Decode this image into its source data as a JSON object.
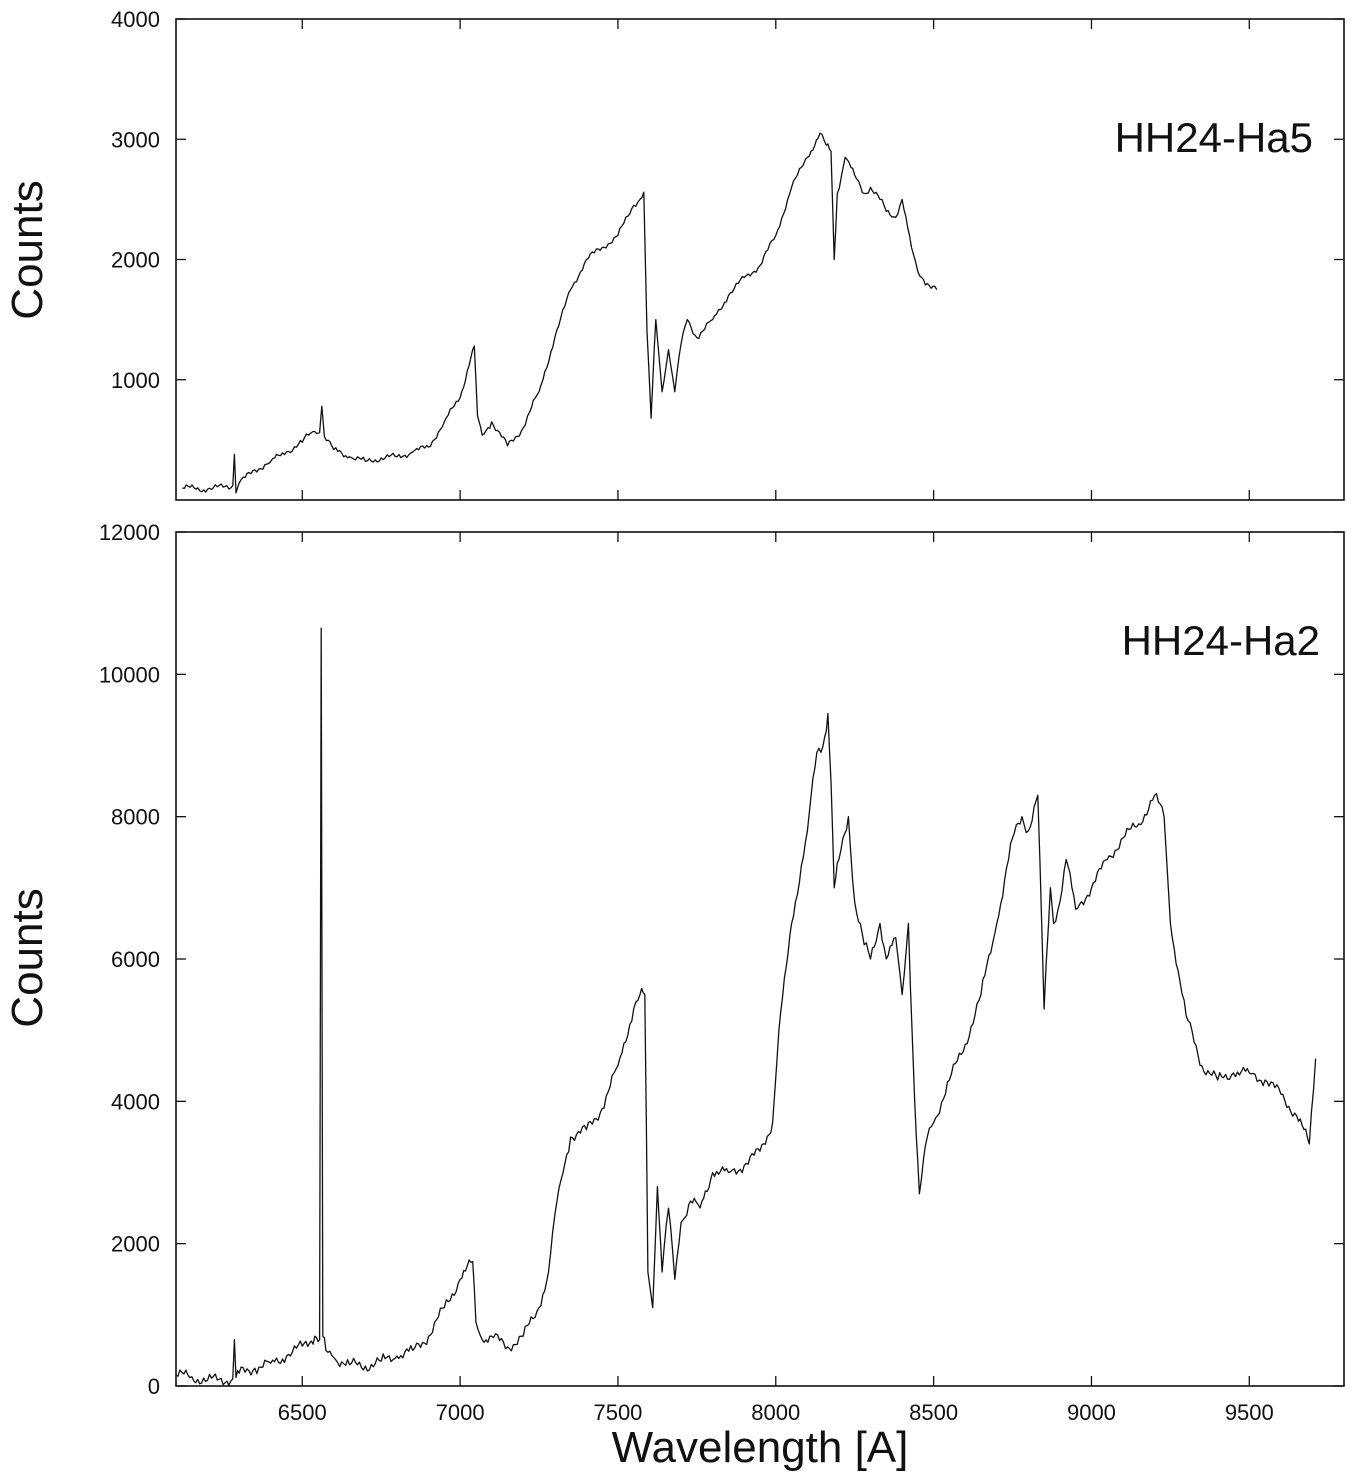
{
  "chart_data": [
    {
      "type": "line",
      "panel": "top",
      "annotation": "HH24-Ha5",
      "ylabel": "Counts",
      "xlabel": "",
      "xlim": [
        6100,
        9800
      ],
      "ylim": [
        0,
        4000
      ],
      "xticks": [
        6500,
        7000,
        7500,
        8000,
        8500,
        9000,
        9500
      ],
      "yticks": [
        1000,
        2000,
        3000,
        4000
      ],
      "ytick_labels": [
        "1000",
        "2000",
        "3000",
        "4000"
      ],
      "xtick_labels_visible": false,
      "series": [
        {
          "x": [
            6120,
            6200,
            6280,
            6285,
            6290,
            6300,
            6350,
            6400,
            6450,
            6500,
            6520,
            6540,
            6555,
            6562,
            6570,
            6600,
            6650,
            6700,
            6750,
            6800,
            6850,
            6900,
            6950,
            7000,
            7040,
            7045,
            7055,
            7070,
            7100,
            7150,
            7200,
            7220,
            7250,
            7300,
            7350,
            7400,
            7450,
            7500,
            7550,
            7570,
            7582,
            7592,
            7605,
            7620,
            7640,
            7660,
            7680,
            7700,
            7720,
            7750,
            7800,
            7850,
            7900,
            7950,
            8000,
            8050,
            8100,
            8140,
            8160,
            8175,
            8185,
            8195,
            8220,
            8250,
            8280,
            8300,
            8330,
            8350,
            8380,
            8400,
            8430,
            8450,
            8480,
            8510
          ],
          "y": [
            100,
            90,
            120,
            380,
            60,
            140,
            250,
            320,
            400,
            480,
            540,
            570,
            560,
            780,
            530,
            420,
            360,
            320,
            350,
            360,
            400,
            440,
            650,
            850,
            1250,
            1280,
            700,
            540,
            650,
            450,
            600,
            730,
            900,
            1350,
            1750,
            2000,
            2100,
            2200,
            2450,
            2500,
            2560,
            1400,
            680,
            1500,
            900,
            1250,
            900,
            1300,
            1500,
            1350,
            1500,
            1700,
            1850,
            1950,
            2200,
            2600,
            2850,
            3050,
            2950,
            2900,
            2000,
            2550,
            2850,
            2700,
            2550,
            2600,
            2500,
            2400,
            2350,
            2500,
            2100,
            1900,
            1800,
            1750
          ]
        }
      ]
    },
    {
      "type": "line",
      "panel": "bottom",
      "annotation": "HH24-Ha2",
      "ylabel": "Counts",
      "xlabel": "Wavelength [A]",
      "xlim": [
        6100,
        9800
      ],
      "ylim": [
        0,
        12000
      ],
      "xticks": [
        6500,
        7000,
        7500,
        8000,
        8500,
        9000,
        9500
      ],
      "xtick_labels": [
        "6500",
        "7000",
        "7500",
        "8000",
        "8500",
        "9000",
        "9500"
      ],
      "yticks": [
        0,
        2000,
        4000,
        6000,
        8000,
        10000,
        12000
      ],
      "ytick_labels": [
        "0",
        "2000",
        "4000",
        "6000",
        "8000",
        "10000",
        "12000"
      ],
      "series": [
        {
          "x": [
            6100,
            6150,
            6200,
            6280,
            6285,
            6290,
            6300,
            6350,
            6400,
            6450,
            6500,
            6540,
            6555,
            6560,
            6565,
            6575,
            6600,
            6650,
            6700,
            6750,
            6800,
            6850,
            6900,
            6950,
            7000,
            7040,
            7050,
            7070,
            7100,
            7150,
            7200,
            7250,
            7280,
            7300,
            7320,
            7350,
            7400,
            7450,
            7500,
            7550,
            7570,
            7585,
            7595,
            7610,
            7625,
            7640,
            7660,
            7680,
            7700,
            7730,
            7760,
            7800,
            7850,
            7900,
            7950,
            7990,
            8010,
            8050,
            8100,
            8130,
            8150,
            8165,
            8175,
            8185,
            8200,
            8230,
            8250,
            8280,
            8300,
            8330,
            8350,
            8380,
            8400,
            8420,
            8440,
            8455,
            8480,
            8500,
            8550,
            8600,
            8650,
            8700,
            8750,
            8780,
            8800,
            8830,
            8850,
            8870,
            8880,
            8900,
            8920,
            8950,
            9000,
            9050,
            9100,
            9150,
            9200,
            9230,
            9250,
            9280,
            9300,
            9350,
            9400,
            9450,
            9500,
            9550,
            9600,
            9650,
            9690,
            9710
          ],
          "y": [
            150,
            130,
            80,
            100,
            650,
            120,
            180,
            250,
            320,
            420,
            560,
            700,
            650,
            10650,
            700,
            500,
            400,
            300,
            280,
            350,
            420,
            500,
            700,
            1100,
            1500,
            1750,
            900,
            650,
            700,
            550,
            700,
            1100,
            1600,
            2400,
            2900,
            3500,
            3600,
            3900,
            4500,
            5300,
            5500,
            5500,
            1600,
            1100,
            2800,
            1600,
            2500,
            1500,
            2300,
            2600,
            2500,
            3000,
            3000,
            3100,
            3300,
            3700,
            5000,
            6500,
            7800,
            8900,
            9000,
            9450,
            8500,
            7000,
            7400,
            8000,
            6800,
            6200,
            6000,
            6500,
            6000,
            6300,
            5500,
            6500,
            4000,
            2700,
            3500,
            3700,
            4300,
            4800,
            5500,
            6500,
            7700,
            8000,
            7800,
            8300,
            5300,
            7000,
            6500,
            6800,
            7400,
            6700,
            7000,
            7400,
            7700,
            7900,
            8300,
            8000,
            6500,
            5700,
            5200,
            4500,
            4300,
            4400,
            4400,
            4300,
            4100,
            3800,
            3400,
            4600
          ]
        }
      ]
    }
  ]
}
